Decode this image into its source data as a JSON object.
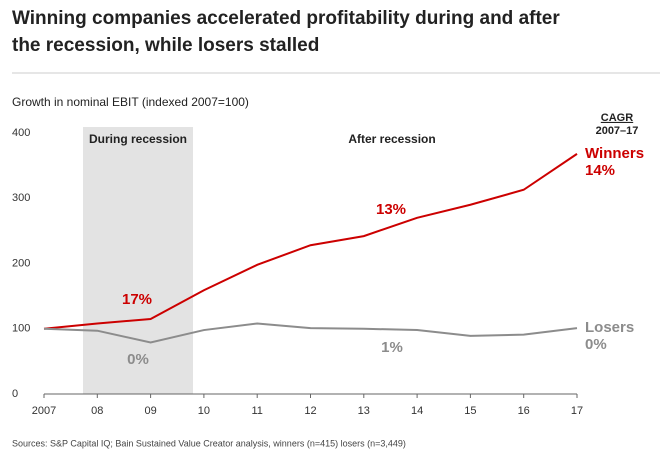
{
  "chart_data": {
    "type": "line",
    "title": "Winning companies accelerated profitability during and after the recession, while losers stalled",
    "title_lines": [
      "Winning companies accelerated profitability during and after",
      "the recession, while losers stalled"
    ],
    "subtitle": "Growth in nominal EBIT (indexed 2007=100)",
    "categories": [
      "2007",
      "08",
      "09",
      "10",
      "11",
      "12",
      "13",
      "14",
      "15",
      "16",
      "17"
    ],
    "series": [
      {
        "name": "Winners",
        "color": "#cc0000",
        "end_label": "14%",
        "values": [
          100,
          108,
          115,
          159,
          198,
          228,
          242,
          270,
          290,
          313,
          368
        ]
      },
      {
        "name": "Losers",
        "color": "#8c8c8c",
        "end_label": "0%",
        "values": [
          100,
          97,
          79,
          98,
          108,
          101,
          100,
          98,
          89,
          91,
          101
        ]
      }
    ],
    "ylim": [
      0,
      400
    ],
    "yticks": [
      0,
      100,
      200,
      300,
      400
    ],
    "periods": [
      "During recession",
      "After recession"
    ],
    "cagr_header": [
      "CAGR",
      "2007–17"
    ],
    "annotations": [
      "17%",
      "13%",
      "0%",
      "1%"
    ],
    "source": "Sources: S&P Capital IQ; Bain Sustained Value Creator analysis, winners (n=415) losers (n=3,449)"
  }
}
